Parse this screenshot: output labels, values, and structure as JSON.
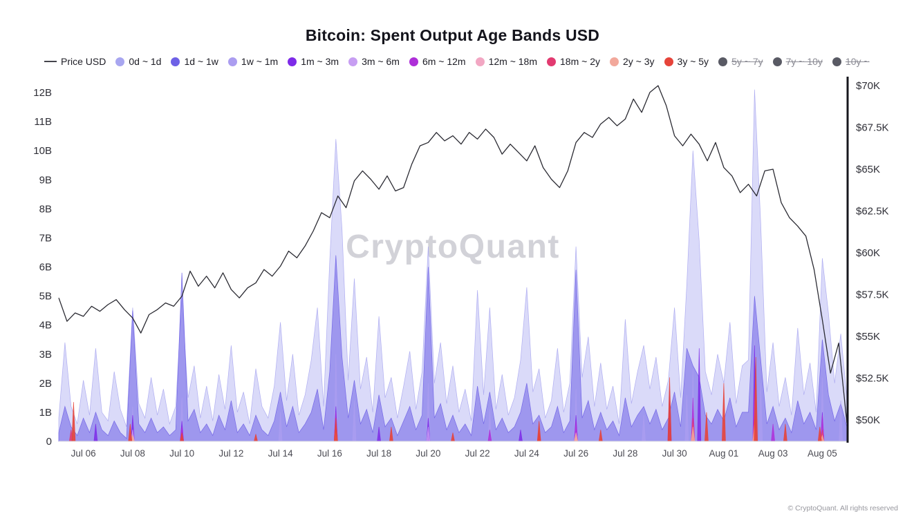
{
  "title": "Bitcoin: Spent Output Age Bands USD",
  "watermark": "CryptoQuant",
  "footer": "© CryptoQuant. All rights reserved",
  "legend": {
    "items": [
      {
        "label": "Price USD",
        "type": "line",
        "color": "#44444c",
        "disabled": false
      },
      {
        "label": "0d ~ 1d",
        "type": "dot",
        "color": "#a8a6f0",
        "disabled": false
      },
      {
        "label": "1d ~ 1w",
        "type": "dot",
        "color": "#6e61e6",
        "disabled": false
      },
      {
        "label": "1w ~ 1m",
        "type": "dot",
        "color": "#ab9df0",
        "disabled": false
      },
      {
        "label": "1m ~ 3m",
        "type": "dot",
        "color": "#7d2ae8",
        "disabled": false
      },
      {
        "label": "3m ~ 6m",
        "type": "dot",
        "color": "#c79ef2",
        "disabled": false
      },
      {
        "label": "6m ~ 12m",
        "type": "dot",
        "color": "#ae2fd8",
        "disabled": false
      },
      {
        "label": "12m ~ 18m",
        "type": "dot",
        "color": "#f2a7c3",
        "disabled": false
      },
      {
        "label": "18m ~ 2y",
        "type": "dot",
        "color": "#e23a70",
        "disabled": false
      },
      {
        "label": "2y ~ 3y",
        "type": "dot",
        "color": "#f2a89b",
        "disabled": false
      },
      {
        "label": "3y ~ 5y",
        "type": "dot",
        "color": "#e6443a",
        "disabled": false
      },
      {
        "label": "5y ~ 7y",
        "type": "dot",
        "color": "#595a64",
        "disabled": true
      },
      {
        "label": "7y ~ 10y",
        "type": "dot",
        "color": "#595a64",
        "disabled": true
      },
      {
        "label": "10y ~",
        "type": "dot",
        "color": "#595a64",
        "disabled": true
      }
    ]
  },
  "chart_data": {
    "type": "area",
    "title": "Bitcoin: Spent Output Age Bands USD",
    "x_unit": "days since Jul 05",
    "x_range": [
      0,
      32
    ],
    "x_ticks": [
      {
        "d": 1,
        "label": "Jul 06"
      },
      {
        "d": 3,
        "label": "Jul 08"
      },
      {
        "d": 5,
        "label": "Jul 10"
      },
      {
        "d": 7,
        "label": "Jul 12"
      },
      {
        "d": 9,
        "label": "Jul 14"
      },
      {
        "d": 11,
        "label": "Jul 16"
      },
      {
        "d": 13,
        "label": "Jul 18"
      },
      {
        "d": 15,
        "label": "Jul 20"
      },
      {
        "d": 17,
        "label": "Jul 22"
      },
      {
        "d": 19,
        "label": "Jul 24"
      },
      {
        "d": 21,
        "label": "Jul 26"
      },
      {
        "d": 23,
        "label": "Jul 28"
      },
      {
        "d": 25,
        "label": "Jul 30"
      },
      {
        "d": 27,
        "label": "Aug 01"
      },
      {
        "d": 29,
        "label": "Aug 03"
      },
      {
        "d": 31,
        "label": "Aug 05"
      }
    ],
    "left_axis": {
      "unit": "billions USD",
      "range": [
        0,
        12
      ],
      "ticks": [
        {
          "v": 0,
          "label": "0"
        },
        {
          "v": 1,
          "label": "1B"
        },
        {
          "v": 2,
          "label": "2B"
        },
        {
          "v": 3,
          "label": "3B"
        },
        {
          "v": 4,
          "label": "4B"
        },
        {
          "v": 5,
          "label": "5B"
        },
        {
          "v": 6,
          "label": "6B"
        },
        {
          "v": 7,
          "label": "7B"
        },
        {
          "v": 8,
          "label": "8B"
        },
        {
          "v": 9,
          "label": "9B"
        },
        {
          "v": 10,
          "label": "10B"
        },
        {
          "v": 11,
          "label": "11B"
        },
        {
          "v": 12,
          "label": "12B"
        }
      ]
    },
    "right_axis": {
      "unit": "USD thousands",
      "range": [
        50,
        70
      ],
      "ticks": [
        {
          "v": 50,
          "label": "$50K"
        },
        {
          "v": 52.5,
          "label": "$52.5K"
        },
        {
          "v": 55,
          "label": "$55K"
        },
        {
          "v": 57.5,
          "label": "$57.5K"
        },
        {
          "v": 60,
          "label": "$60K"
        },
        {
          "v": 62.5,
          "label": "$62.5K"
        },
        {
          "v": 65,
          "label": "$65K"
        },
        {
          "v": 67.5,
          "label": "$67.5K"
        },
        {
          "v": 70,
          "label": "$70K"
        }
      ]
    },
    "price_series": {
      "name": "Price USD",
      "color": "#2a2a32",
      "x_start": 0,
      "x_step": 0.333333,
      "values_k": [
        57.3,
        55.9,
        56.4,
        56.2,
        56.8,
        56.5,
        56.9,
        57.2,
        56.6,
        56.1,
        55.2,
        56.3,
        56.6,
        57.0,
        56.8,
        57.4,
        58.9,
        58.0,
        58.6,
        57.9,
        58.8,
        57.8,
        57.3,
        57.9,
        58.2,
        59.0,
        58.6,
        59.2,
        60.1,
        59.7,
        60.4,
        61.3,
        62.4,
        62.1,
        63.4,
        62.7,
        64.3,
        64.9,
        64.4,
        63.8,
        64.6,
        63.7,
        63.9,
        65.3,
        66.4,
        66.6,
        67.2,
        66.7,
        67.0,
        66.5,
        67.2,
        66.8,
        67.4,
        66.9,
        65.9,
        66.5,
        66.0,
        65.5,
        66.4,
        65.1,
        64.4,
        63.9,
        64.9,
        66.6,
        67.2,
        66.9,
        67.7,
        68.1,
        67.6,
        68.0,
        69.2,
        68.4,
        69.6,
        70.0,
        68.8,
        67.0,
        66.4,
        67.1,
        66.5,
        65.5,
        66.6,
        65.1,
        64.6,
        63.6,
        64.1,
        63.4,
        64.9,
        65.0,
        63.0,
        62.1,
        61.6,
        61.0,
        59.0,
        56.0,
        52.8,
        54.6,
        49.8
      ]
    },
    "bands": [
      {
        "name": "0d ~ 1d",
        "color": "#a8a6f0",
        "opacity": 0.42,
        "x_start": 0,
        "x_step": 0.25,
        "values_b": [
          0.8,
          3.4,
          1.2,
          0.6,
          2.1,
          0.9,
          3.2,
          1.0,
          0.7,
          2.4,
          1.1,
          0.5,
          4.6,
          1.3,
          0.8,
          2.2,
          0.9,
          1.8,
          0.6,
          1.2,
          5.0,
          1.5,
          2.6,
          0.8,
          1.9,
          0.7,
          2.3,
          1.1,
          3.3,
          1.0,
          1.7,
          0.6,
          2.5,
          1.2,
          0.8,
          1.9,
          4.1,
          1.4,
          3.0,
          0.9,
          1.6,
          2.8,
          4.6,
          1.2,
          6.2,
          10.4,
          7.3,
          2.1,
          5.6,
          1.8,
          2.9,
          1.0,
          4.3,
          1.5,
          2.2,
          0.8,
          1.9,
          3.1,
          1.1,
          2.4,
          6.7,
          2.0,
          3.4,
          1.3,
          2.6,
          1.0,
          1.8,
          0.7,
          5.2,
          1.6,
          4.6,
          1.1,
          2.3,
          0.9,
          1.5,
          2.8,
          5.3,
          1.7,
          2.5,
          0.8,
          1.4,
          3.2,
          1.0,
          2.0,
          6.7,
          2.2,
          3.6,
          1.2,
          2.7,
          1.1,
          1.9,
          0.6,
          4.2,
          1.3,
          2.4,
          3.3,
          1.8,
          2.9,
          1.2,
          2.1,
          4.6,
          1.5,
          5.4,
          10.0,
          6.9,
          2.4,
          1.6,
          3.0,
          2.0,
          4.1,
          1.3,
          2.6,
          2.8,
          12.1,
          7.5,
          1.7,
          3.4,
          1.2,
          2.2,
          0.9,
          3.9,
          1.6,
          2.7,
          1.0,
          6.3,
          4.4,
          2.0,
          3.7,
          1.5
        ]
      },
      {
        "name": "1d ~ 1w",
        "color": "#6e61e6",
        "opacity": 0.55,
        "x_start": 0,
        "x_step": 0.25,
        "values_b": [
          0.3,
          1.2,
          0.5,
          0.2,
          0.8,
          0.3,
          1.0,
          0.4,
          0.2,
          0.7,
          0.3,
          0.1,
          4.5,
          0.6,
          0.3,
          0.8,
          0.3,
          0.5,
          0.2,
          0.4,
          5.8,
          0.7,
          1.1,
          0.3,
          0.6,
          0.2,
          0.9,
          0.4,
          1.4,
          0.3,
          0.6,
          0.2,
          0.9,
          0.4,
          0.2,
          0.7,
          1.7,
          0.5,
          1.2,
          0.3,
          0.6,
          1.0,
          1.8,
          0.4,
          2.4,
          6.4,
          2.9,
          0.8,
          2.1,
          0.6,
          1.1,
          0.3,
          1.6,
          0.5,
          0.8,
          0.2,
          0.7,
          1.2,
          0.4,
          0.9,
          6.0,
          0.8,
          1.3,
          0.4,
          0.9,
          0.3,
          0.6,
          0.2,
          1.9,
          0.6,
          1.7,
          0.4,
          0.8,
          0.3,
          0.5,
          1.0,
          2.0,
          0.6,
          0.9,
          0.3,
          0.5,
          1.2,
          0.3,
          0.7,
          5.9,
          0.8,
          1.4,
          0.4,
          1.0,
          0.4,
          0.7,
          0.2,
          1.5,
          0.5,
          0.9,
          1.2,
          0.6,
          1.1,
          0.4,
          0.8,
          1.7,
          0.5,
          3.2,
          2.6,
          2.2,
          0.9,
          0.6,
          1.1,
          0.7,
          1.5,
          0.5,
          1.0,
          1.0,
          5.0,
          2.8,
          0.6,
          1.2,
          0.4,
          0.8,
          0.3,
          1.4,
          0.6,
          1.0,
          0.4,
          3.5,
          1.6,
          0.7,
          1.3,
          0.5
        ]
      },
      {
        "name": "1w ~ 1m",
        "color": "#ab9df0",
        "opacity": 0.75,
        "points": [
          [
            3,
            1.2
          ],
          [
            5,
            1.5
          ],
          [
            9,
            1.0
          ],
          [
            11.25,
            3.0
          ],
          [
            12,
            1.4
          ],
          [
            15,
            2.0
          ],
          [
            17.5,
            1.1
          ],
          [
            21,
            1.8
          ],
          [
            23.75,
            0.9
          ],
          [
            25.5,
            1.6
          ],
          [
            25.75,
            2.5
          ],
          [
            26,
            1.9
          ],
          [
            28.25,
            3.5
          ],
          [
            28.5,
            2.0
          ],
          [
            31,
            2.2
          ],
          [
            31.75,
            1.4
          ]
        ]
      },
      {
        "name": "1m ~ 3m",
        "color": "#7d2ae8",
        "opacity": 0.85,
        "points": [
          [
            1.5,
            0.6
          ],
          [
            3,
            0.9
          ],
          [
            5,
            0.7
          ],
          [
            11.25,
            1.2
          ],
          [
            13,
            0.5
          ],
          [
            15,
            0.8
          ],
          [
            18.75,
            0.4
          ],
          [
            21,
            0.9
          ],
          [
            24.8,
            1.9
          ],
          [
            26,
            3.2
          ],
          [
            28.25,
            3.3
          ],
          [
            31,
            1.0
          ]
        ]
      },
      {
        "name": "3m ~ 6m",
        "color": "#c79ef2",
        "opacity": 0.8,
        "points": [
          [
            3,
            0.4
          ],
          [
            11.25,
            0.8
          ],
          [
            15,
            0.5
          ],
          [
            21,
            0.6
          ],
          [
            25.75,
            1.2
          ],
          [
            28.25,
            1.5
          ],
          [
            31,
            0.7
          ]
        ]
      },
      {
        "name": "6m ~ 12m",
        "color": "#ae2fd8",
        "opacity": 0.85,
        "points": [
          [
            5,
            0.5
          ],
          [
            11.25,
            1.0
          ],
          [
            17.5,
            0.4
          ],
          [
            21,
            0.7
          ],
          [
            25.75,
            1.5
          ],
          [
            28.25,
            1.8
          ],
          [
            29,
            0.6
          ],
          [
            31,
            0.9
          ]
        ]
      },
      {
        "name": "12m ~ 18m",
        "color": "#f2a7c3",
        "opacity": 0.85,
        "points": [
          [
            3,
            0.2
          ],
          [
            11.25,
            0.4
          ],
          [
            21,
            0.3
          ],
          [
            25.75,
            0.6
          ],
          [
            28.25,
            0.7
          ],
          [
            31,
            0.3
          ]
        ]
      },
      {
        "name": "18m ~ 2y",
        "color": "#e23a70",
        "opacity": 0.85,
        "points": [
          [
            0.5,
            0.4
          ],
          [
            11.25,
            0.5
          ],
          [
            19.5,
            0.3
          ],
          [
            25.75,
            0.8
          ],
          [
            28.25,
            0.9
          ],
          [
            31,
            0.4
          ]
        ]
      },
      {
        "name": "2y ~ 3y",
        "color": "#f2a89b",
        "opacity": 0.85,
        "points": [
          [
            3,
            0.2
          ],
          [
            11.25,
            0.3
          ],
          [
            21,
            0.25
          ],
          [
            25.75,
            0.5
          ],
          [
            28.25,
            0.6
          ],
          [
            31,
            0.2
          ]
        ]
      },
      {
        "name": "3y ~ 5y",
        "color": "#e6443a",
        "opacity": 0.9,
        "points": [
          [
            0.6,
            1.35
          ],
          [
            2.9,
            0.6
          ],
          [
            5,
            0.3
          ],
          [
            8,
            0.25
          ],
          [
            11.25,
            0.8
          ],
          [
            13.5,
            0.5
          ],
          [
            16,
            0.3
          ],
          [
            19.5,
            0.7
          ],
          [
            22,
            0.4
          ],
          [
            24.8,
            2.2
          ],
          [
            26.3,
            1.0
          ],
          [
            27,
            2.0
          ],
          [
            28.3,
            2.9
          ],
          [
            29.5,
            0.6
          ],
          [
            30.9,
            0.5
          ]
        ]
      }
    ],
    "disabled_bands": [
      "5y ~ 7y",
      "7y ~ 10y",
      "10y ~"
    ]
  }
}
